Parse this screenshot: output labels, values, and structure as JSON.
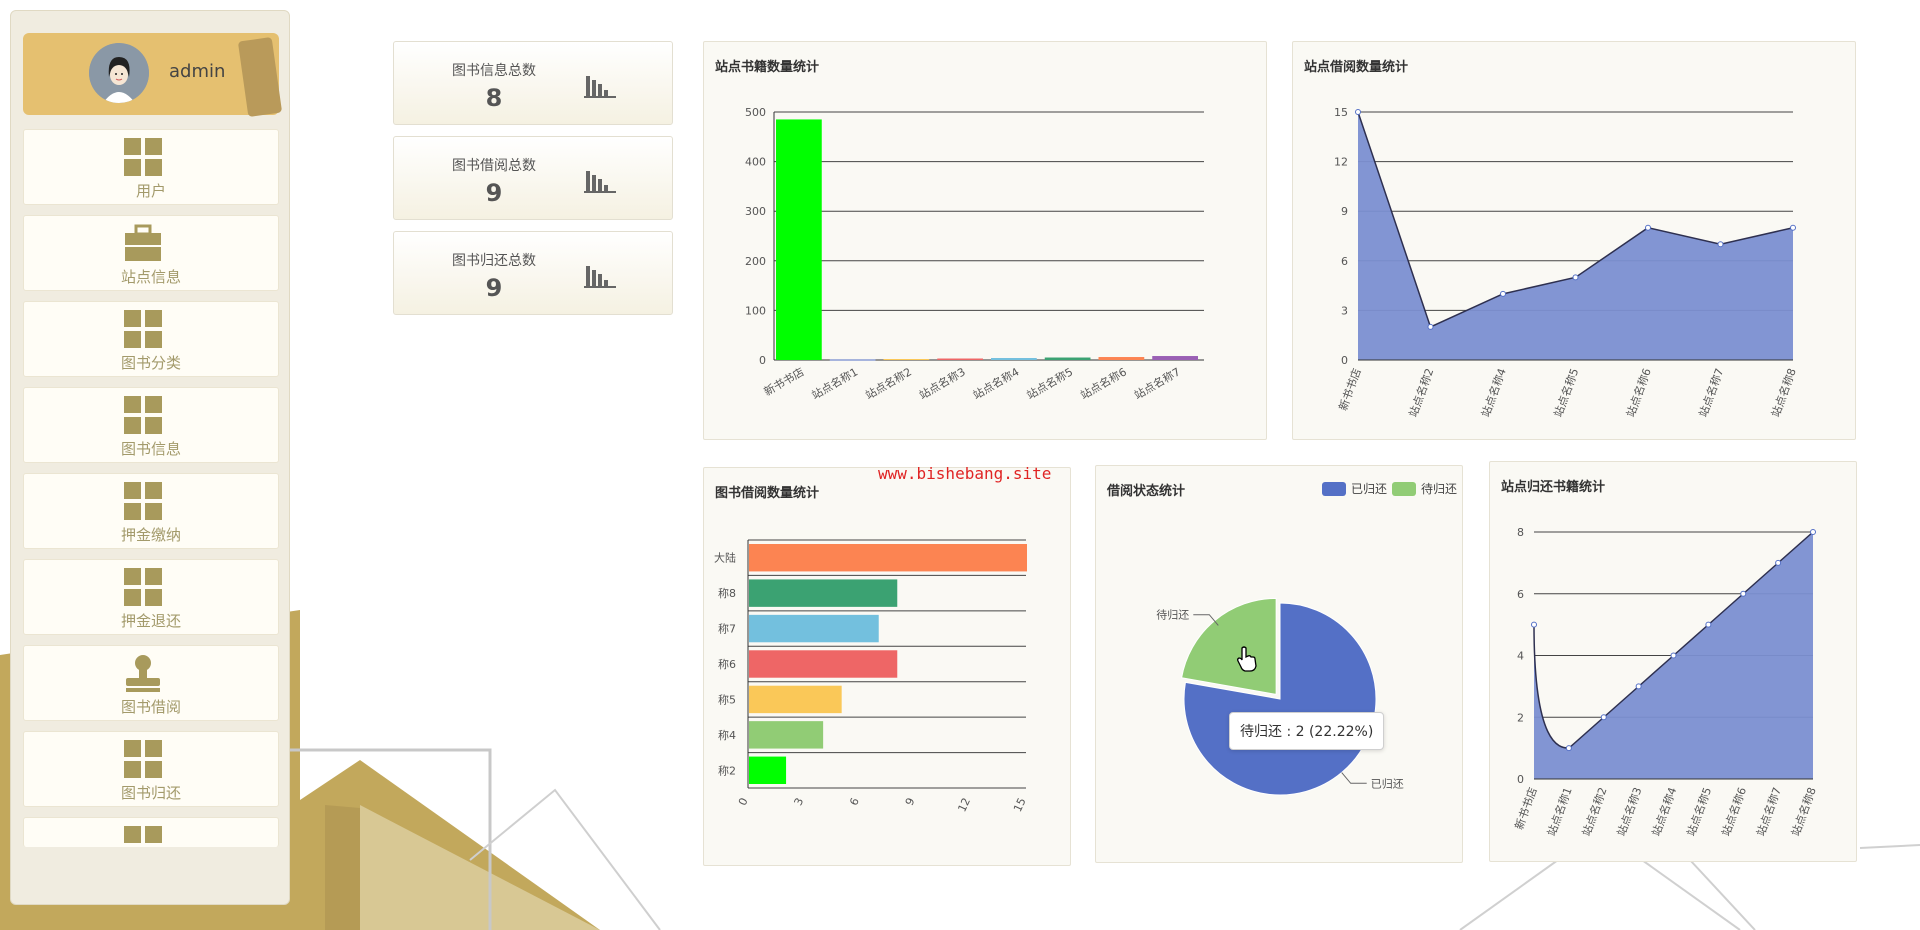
{
  "user": {
    "name": "admin"
  },
  "menu": [
    {
      "label": "用户",
      "icon": "grid-icon"
    },
    {
      "label": "站点信息",
      "icon": "briefcase-icon"
    },
    {
      "label": "图书分类",
      "icon": "grid-icon"
    },
    {
      "label": "图书信息",
      "icon": "grid-icon"
    },
    {
      "label": "押金缴纳",
      "icon": "grid-icon"
    },
    {
      "label": "押金退还",
      "icon": "grid-icon"
    },
    {
      "label": "图书借阅",
      "icon": "stamp-icon"
    },
    {
      "label": "图书归还",
      "icon": "grid-icon"
    }
  ],
  "stats": [
    {
      "title": "图书信息总数",
      "value": "8"
    },
    {
      "title": "图书借阅总数",
      "value": "9"
    },
    {
      "title": "图书归还总数",
      "value": "9"
    }
  ],
  "watermark": "www.bishebang.site",
  "chart_data": [
    {
      "type": "bar",
      "title": "站点书籍数量统计",
      "categories": [
        "新书书店",
        "站点名称1",
        "站点名称2",
        "站点名称3",
        "站点名称4",
        "站点名称5",
        "站点名称6",
        "站点名称7"
      ],
      "values": [
        485,
        1,
        2,
        3,
        4,
        5,
        6,
        8
      ],
      "colors": [
        "#00ff00",
        "#5470c6",
        "#fac858",
        "#ee6666",
        "#73c0de",
        "#3ba272",
        "#fc8452",
        "#9a60b4"
      ],
      "ylim": [
        0,
        500
      ],
      "yticks": [
        0,
        100,
        200,
        300,
        400,
        500
      ]
    },
    {
      "type": "area",
      "title": "站点借阅数量统计",
      "categories": [
        "新书书店",
        "站点名称2",
        "站点名称4",
        "站点名称5",
        "站点名称6",
        "站点名称7",
        "站点名称8"
      ],
      "values": [
        15,
        2,
        4,
        5,
        8,
        7,
        8
      ],
      "color": "#7b8fd1",
      "ylim": [
        0,
        15
      ],
      "yticks": [
        0,
        3,
        6,
        9,
        12,
        15
      ]
    },
    {
      "type": "bar",
      "orientation": "horizontal",
      "title": "图书借阅数量统计",
      "categories": [
        "大陆",
        "称8",
        "称7",
        "称6",
        "称5",
        "称4",
        "称2"
      ],
      "values": [
        15,
        8,
        7,
        8,
        5,
        4,
        2
      ],
      "colors": [
        "#fc8452",
        "#3ba272",
        "#73c0de",
        "#ee6666",
        "#fac858",
        "#91cc75",
        "#00ff00"
      ],
      "xlim": [
        0,
        15
      ],
      "xticks": [
        0,
        3,
        6,
        9,
        12,
        15
      ]
    },
    {
      "type": "pie",
      "title": "借阅状态统计",
      "series": [
        {
          "name": "已归还",
          "value": 7,
          "color": "#5470c6"
        },
        {
          "name": "待归还",
          "value": 2,
          "color": "#91cc75"
        }
      ],
      "legend": [
        "已归还",
        "待归还"
      ],
      "tooltip": "待归还 : 2 (22.22%)"
    },
    {
      "type": "area",
      "title": "站点归还书籍统计",
      "categories": [
        "新书书店",
        "站点名称1",
        "站点名称2",
        "站点名称3",
        "站点名称4",
        "站点名称5",
        "站点名称6",
        "站点名称7",
        "站点名称8"
      ],
      "values": [
        5,
        1,
        2,
        3,
        4,
        5,
        6,
        7,
        8
      ],
      "color": "#7b8fd1",
      "ylim": [
        0,
        8
      ],
      "yticks": [
        0,
        2,
        4,
        6,
        8
      ]
    }
  ]
}
